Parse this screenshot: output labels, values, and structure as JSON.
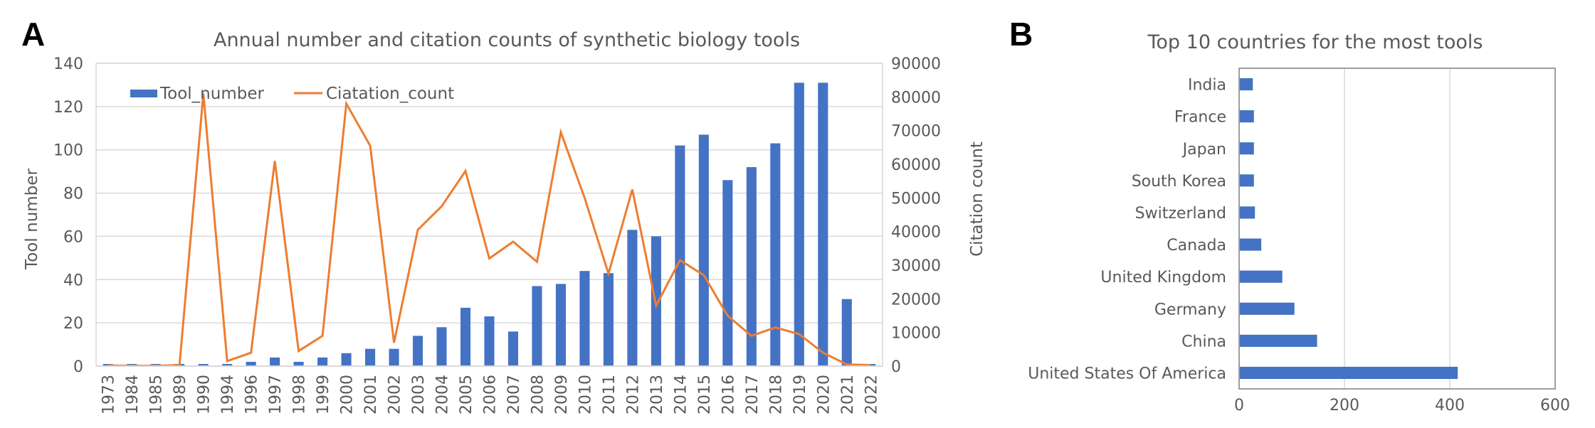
{
  "panels": {
    "a_letter": "A",
    "b_letter": "B"
  },
  "colors": {
    "bar": "#4472C4",
    "line": "#ED7D31",
    "grid": "#D9D9D9",
    "axis": "#7F7F7F",
    "text": "#595959"
  },
  "chart_data": [
    {
      "type": "bar",
      "combo_with": "line",
      "title": "Annual number and citation counts of synthetic biology tools",
      "categories": [
        "1973",
        "1984",
        "1985",
        "1989",
        "1990",
        "1994",
        "1996",
        "1997",
        "1998",
        "1999",
        "2000",
        "2001",
        "2002",
        "2003",
        "2004",
        "2005",
        "2006",
        "2007",
        "2008",
        "2009",
        "2010",
        "2011",
        "2012",
        "2013",
        "2014",
        "2015",
        "2016",
        "2017",
        "2018",
        "2019",
        "2020",
        "2021",
        "2022"
      ],
      "series": [
        {
          "name": "Tool_number",
          "type": "bar",
          "axis": "left",
          "values": [
            1,
            1,
            1,
            1,
            1,
            1,
            2,
            4,
            2,
            4,
            6,
            8,
            8,
            14,
            18,
            27,
            23,
            16,
            37,
            38,
            44,
            43,
            63,
            60,
            102,
            107,
            86,
            92,
            103,
            131,
            131,
            31,
            1
          ]
        },
        {
          "name": "Ciatation_count",
          "type": "line",
          "axis": "right",
          "values": [
            200,
            100,
            100,
            300,
            81000,
            1500,
            4000,
            61000,
            4500,
            9000,
            78000,
            65500,
            7000,
            40500,
            47500,
            58000,
            32000,
            37000,
            31000,
            69500,
            50000,
            27500,
            52500,
            18000,
            31500,
            27000,
            15000,
            9000,
            11500,
            9500,
            4000,
            500,
            300
          ]
        }
      ],
      "ylabel": "Tool number",
      "ylim": [
        0,
        140
      ],
      "yticks": [
        0,
        20,
        40,
        60,
        80,
        100,
        120,
        140
      ],
      "y2label": "Citation count",
      "y2lim": [
        0,
        90000
      ],
      "y2ticks": [
        0,
        10000,
        20000,
        30000,
        40000,
        50000,
        60000,
        70000,
        80000,
        90000
      ],
      "grid": true,
      "legend": "top-left"
    },
    {
      "type": "bar",
      "orientation": "horizontal",
      "title": "Top 10 countries for the most tools",
      "categories": [
        "United States Of America",
        "China",
        "Germany",
        "United Kingdom",
        "Canada",
        "Switzerland",
        "South Korea",
        "Japan",
        "France",
        "India"
      ],
      "values": [
        415,
        148,
        105,
        82,
        42,
        30,
        28,
        28,
        28,
        26
      ],
      "xlim": [
        0,
        600
      ],
      "xticks": [
        0,
        200,
        400,
        600
      ],
      "grid": true
    }
  ]
}
